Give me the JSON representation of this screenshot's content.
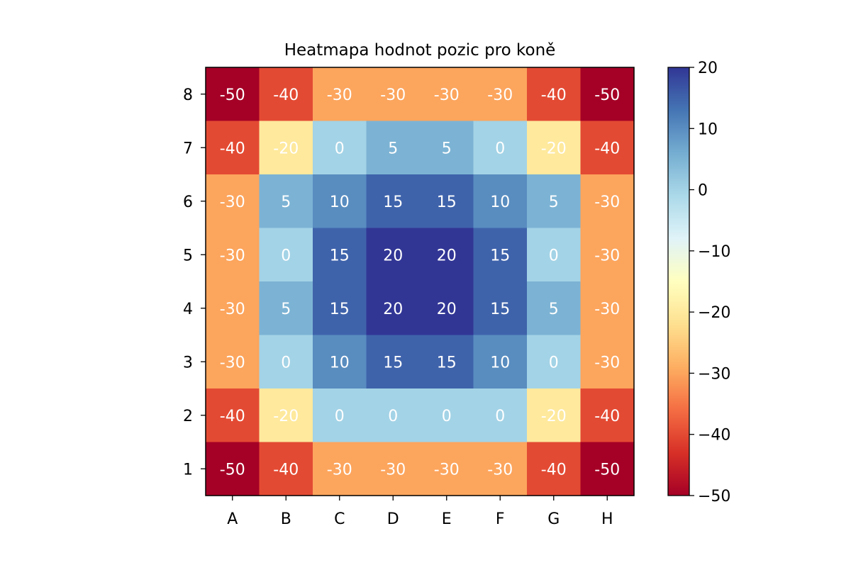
{
  "chart_data": {
    "type": "heatmap",
    "title": "Heatmapa hodnot pozic pro koně",
    "xlabel": "",
    "ylabel": "",
    "x_categories": [
      "A",
      "B",
      "C",
      "D",
      "E",
      "F",
      "G",
      "H"
    ],
    "y_categories": [
      "8",
      "7",
      "6",
      "5",
      "4",
      "3",
      "2",
      "1"
    ],
    "values": [
      [
        -50,
        -40,
        -30,
        -30,
        -30,
        -30,
        -40,
        -50
      ],
      [
        -40,
        -20,
        0,
        5,
        5,
        0,
        -20,
        -40
      ],
      [
        -30,
        5,
        10,
        15,
        15,
        10,
        5,
        -30
      ],
      [
        -30,
        0,
        15,
        20,
        20,
        15,
        0,
        -30
      ],
      [
        -30,
        5,
        15,
        20,
        20,
        15,
        5,
        -30
      ],
      [
        -30,
        0,
        10,
        15,
        15,
        10,
        0,
        -30
      ],
      [
        -40,
        -20,
        0,
        0,
        0,
        0,
        -20,
        -40
      ],
      [
        -50,
        -40,
        -30,
        -30,
        -30,
        -30,
        -40,
        -50
      ]
    ],
    "colormap": "RdYlBu",
    "vmin": -50,
    "vmax": 20,
    "colorbar": {
      "ticks": [
        20,
        10,
        0,
        -10,
        -20,
        -30,
        -40,
        -50
      ],
      "tick_labels": [
        "20",
        "10",
        "0",
        "−10",
        "−20",
        "−30",
        "−40",
        "−50"
      ],
      "position": "right"
    },
    "cell_label_color": "#ffffff",
    "grid": false
  }
}
